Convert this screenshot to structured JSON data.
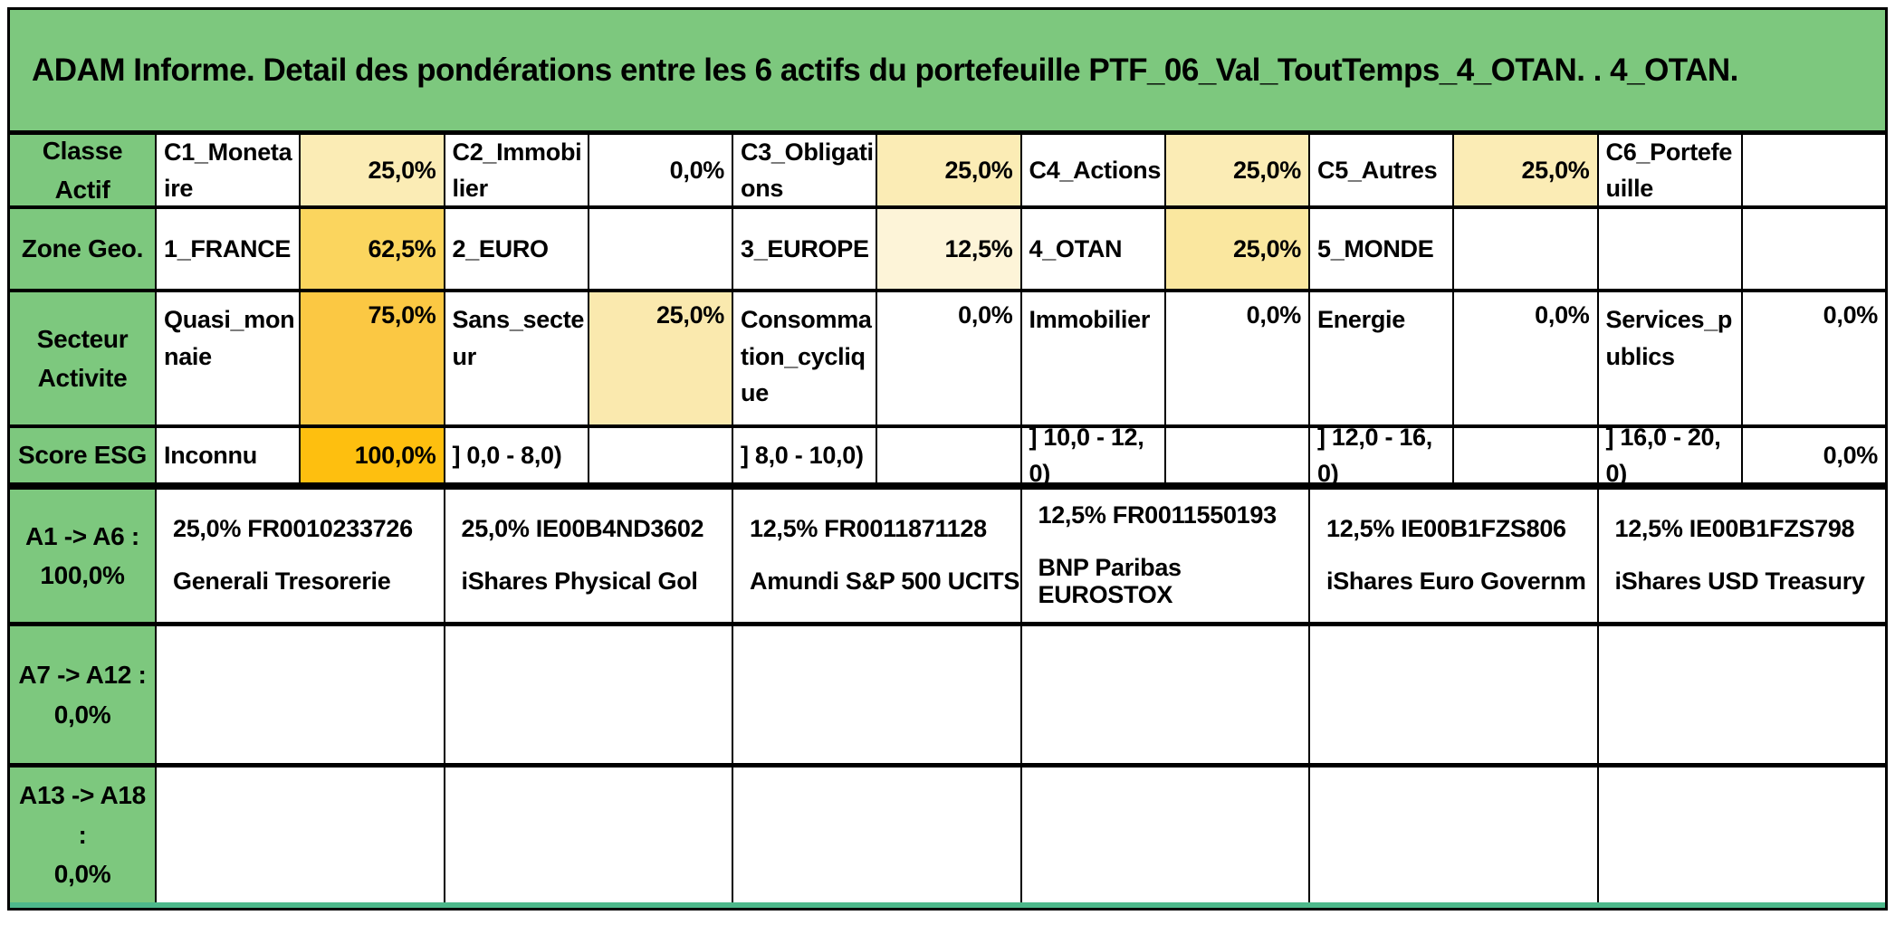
{
  "title": "ADAM Informe. Detail des pondérations entre les 6 actifs du portefeuille PTF_06_Val_ToutTemps_4_OTAN. . 4_OTAN.",
  "colors": {
    "header_green": "#7DC87E",
    "heat_0": "#FFFFFF",
    "heat_12_5": "#FDF4D8",
    "heat_25": "#FBECB5",
    "heat_25_row2": "#FAE79F",
    "heat_25_row3": "#FAE9AE",
    "heat_62_5": "#FBD55E",
    "heat_75": "#FBC843",
    "heat_100": "#FEBF0F",
    "bottom_strip": "#4DB98B"
  },
  "attribute_rows": [
    {
      "id": "classe-actif",
      "header": "Classe Actif",
      "pairs": [
        {
          "label": "C1_Monetaire",
          "value": "25,0%",
          "bg": "#FBECB5"
        },
        {
          "label": "C2_Immobilier",
          "value": "0,0%",
          "bg": "#FFFFFF"
        },
        {
          "label": "C3_Obligations",
          "value": "25,0%",
          "bg": "#FBECB5"
        },
        {
          "label": "C4_Actions",
          "value": "25,0%",
          "bg": "#FBECB5"
        },
        {
          "label": "C5_Autres",
          "value": "25,0%",
          "bg": "#FBECB5"
        },
        {
          "label": "C6_Portefeuille",
          "value": "",
          "bg": "#FFFFFF"
        }
      ]
    },
    {
      "id": "zone-geo",
      "header": "Zone Geo.",
      "pairs": [
        {
          "label": "1_FRANCE",
          "value": "62,5%",
          "bg": "#FBD55E"
        },
        {
          "label": "2_EURO",
          "value": "",
          "bg": "#FFFFFF"
        },
        {
          "label": "3_EUROPE",
          "value": "12,5%",
          "bg": "#FDF4D8"
        },
        {
          "label": "4_OTAN",
          "value": "25,0%",
          "bg": "#FAE79F"
        },
        {
          "label": "5_MONDE",
          "value": "",
          "bg": "#FFFFFF"
        },
        {
          "label": "",
          "value": "",
          "bg": "#FFFFFF"
        }
      ]
    },
    {
      "id": "secteur-activite",
      "header": "Secteur\nActivite",
      "pairs": [
        {
          "label": "Quasi_monnaie",
          "value": "75,0%",
          "bg": "#FBC843"
        },
        {
          "label": "Sans_secteur",
          "value": "25,0%",
          "bg": "#FAE9AE"
        },
        {
          "label": "Consommation_cyclique",
          "value": "0,0%",
          "bg": "#FFFFFF"
        },
        {
          "label": "Immobilier",
          "value": "0,0%",
          "bg": "#FFFFFF"
        },
        {
          "label": "Energie",
          "value": "0,0%",
          "bg": "#FFFFFF"
        },
        {
          "label": "Services_publics",
          "value": "0,0%",
          "bg": "#FFFFFF"
        }
      ]
    },
    {
      "id": "score-esg",
      "header": "Score ESG",
      "pairs": [
        {
          "label": "Inconnu",
          "value": "100,0%",
          "bg": "#FEBF0F"
        },
        {
          "label": "] 0,0 - 8,0)",
          "value": "",
          "bg": "#FFFFFF"
        },
        {
          "label": "] 8,0 - 10,0)",
          "value": "",
          "bg": "#FFFFFF"
        },
        {
          "label": "] 10,0 - 12,0)",
          "value": "",
          "bg": "#FFFFFF"
        },
        {
          "label": "] 12,0 - 16,0)",
          "value": "",
          "bg": "#FFFFFF"
        },
        {
          "label": "] 16,0 - 20,0)",
          "value": "0,0%",
          "bg": "#FFFFFF"
        }
      ]
    }
  ],
  "asset_rows": [
    {
      "id": "a1-a6",
      "header": "A1 ->  A6 :\n100,0%",
      "assets": [
        {
          "line1": "25,0% FR0010233726",
          "line2": "Generali Tresorerie"
        },
        {
          "line1": "25,0% IE00B4ND3602",
          "line2": "iShares Physical Gol"
        },
        {
          "line1": "12,5% FR0011871128",
          "line2": "Amundi S&P 500 UCITS"
        },
        {
          "line1": "12,5% FR0011550193",
          "line2": "BNP Paribas EUROSTOX"
        },
        {
          "line1": "12,5% IE00B1FZS806",
          "line2": "iShares Euro Governm"
        },
        {
          "line1": "12,5% IE00B1FZS798",
          "line2": "iShares USD Treasury"
        }
      ]
    },
    {
      "id": "a7-a12",
      "header": "A7 -> A12 : 0,0%",
      "assets": [
        {
          "line1": "",
          "line2": ""
        },
        {
          "line1": "",
          "line2": ""
        },
        {
          "line1": "",
          "line2": ""
        },
        {
          "line1": "",
          "line2": ""
        },
        {
          "line1": "",
          "line2": ""
        },
        {
          "line1": "",
          "line2": ""
        }
      ]
    },
    {
      "id": "a13-a18",
      "header": "A13 -> A18 :\n0,0%",
      "assets": [
        {
          "line1": "",
          "line2": ""
        },
        {
          "line1": "",
          "line2": ""
        },
        {
          "line1": "",
          "line2": ""
        },
        {
          "line1": "",
          "line2": ""
        },
        {
          "line1": "",
          "line2": ""
        },
        {
          "line1": "",
          "line2": ""
        }
      ]
    }
  ]
}
